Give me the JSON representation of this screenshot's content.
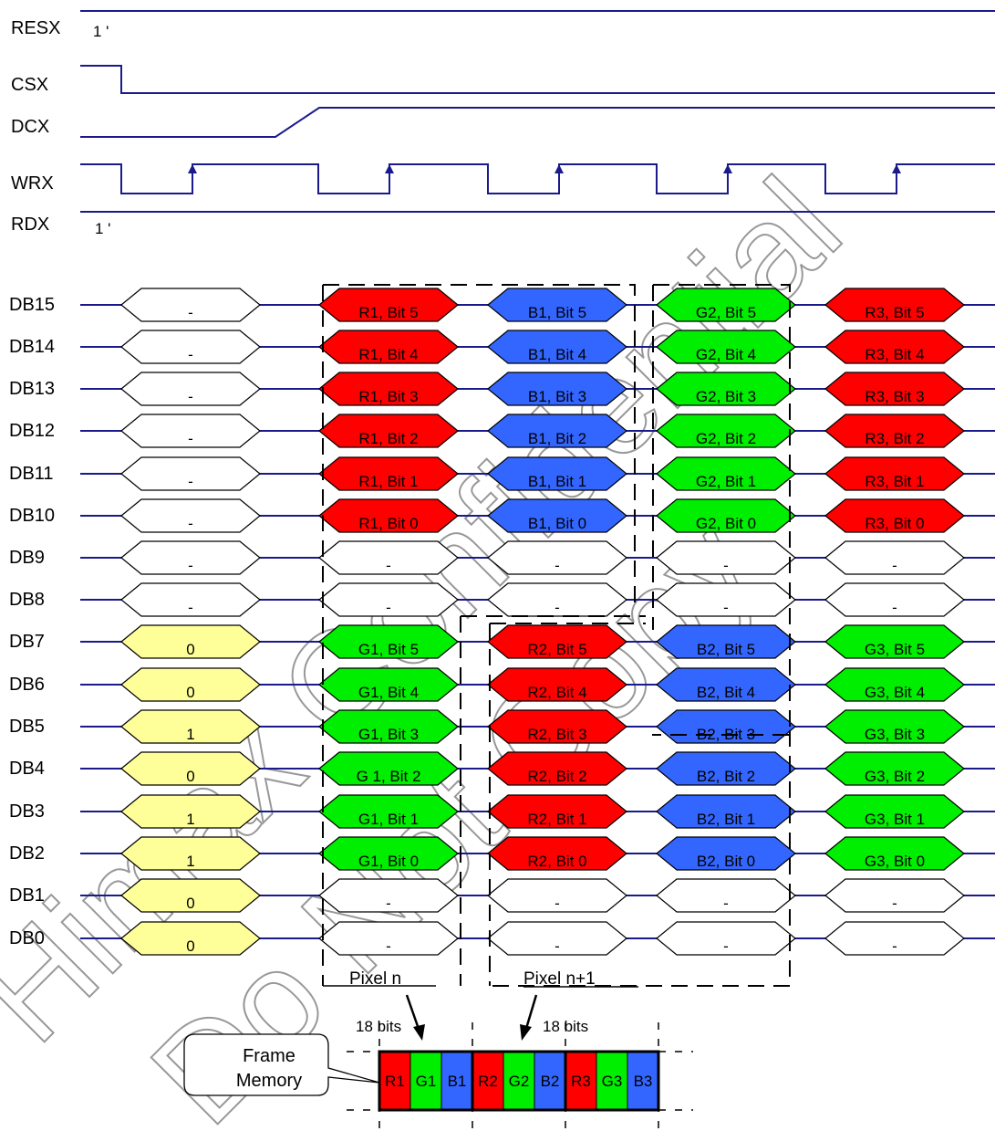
{
  "colors": {
    "signal": "#1a1a8c",
    "red": "#ff0000",
    "green": "#00ee00",
    "blue": "#3366ff",
    "yellow": "#ffff99",
    "white": "#ffffff"
  },
  "control_signals": [
    {
      "name": "RESX",
      "note": "1 '"
    },
    {
      "name": "CSX",
      "note": ""
    },
    {
      "name": "DCX",
      "note": ""
    },
    {
      "name": "WRX",
      "note": ""
    },
    {
      "name": "RDX",
      "note": "1 '"
    }
  ],
  "bus": [
    {
      "name": "DB15",
      "cells": [
        [
          "-",
          "white"
        ],
        [
          "R1, Bit 5",
          "red"
        ],
        [
          "B1, Bit 5",
          "blue"
        ],
        [
          "G2, Bit 5",
          "green"
        ],
        [
          "R3, Bit 5",
          "red"
        ]
      ]
    },
    {
      "name": "DB14",
      "cells": [
        [
          "-",
          "white"
        ],
        [
          "R1, Bit 4",
          "red"
        ],
        [
          "B1, Bit 4",
          "blue"
        ],
        [
          "G2, Bit 4",
          "green"
        ],
        [
          "R3, Bit 4",
          "red"
        ]
      ]
    },
    {
      "name": "DB13",
      "cells": [
        [
          "-",
          "white"
        ],
        [
          "R1, Bit 3",
          "red"
        ],
        [
          "B1, Bit 3",
          "blue"
        ],
        [
          "G2, Bit 3",
          "green"
        ],
        [
          "R3, Bit 3",
          "red"
        ]
      ]
    },
    {
      "name": "DB12",
      "cells": [
        [
          "-",
          "white"
        ],
        [
          "R1, Bit 2",
          "red"
        ],
        [
          "B1, Bit 2",
          "blue"
        ],
        [
          "G2, Bit 2",
          "green"
        ],
        [
          "R3, Bit 2",
          "red"
        ]
      ]
    },
    {
      "name": "DB11",
      "cells": [
        [
          "-",
          "white"
        ],
        [
          "R1, Bit 1",
          "red"
        ],
        [
          "B1, Bit 1",
          "blue"
        ],
        [
          "G2, Bit 1",
          "green"
        ],
        [
          "R3, Bit 1",
          "red"
        ]
      ]
    },
    {
      "name": "DB10",
      "cells": [
        [
          "-",
          "white"
        ],
        [
          "R1, Bit 0",
          "red"
        ],
        [
          "B1, Bit 0",
          "blue"
        ],
        [
          "G2, Bit 0",
          "green"
        ],
        [
          "R3, Bit 0",
          "red"
        ]
      ]
    },
    {
      "name": "DB9",
      "cells": [
        [
          "-",
          "white"
        ],
        [
          "-",
          "white"
        ],
        [
          "-",
          "white"
        ],
        [
          "-",
          "white"
        ],
        [
          "-",
          "white"
        ]
      ]
    },
    {
      "name": "DB8",
      "cells": [
        [
          "-",
          "white"
        ],
        [
          "-",
          "white"
        ],
        [
          "-",
          "white"
        ],
        [
          "-",
          "white"
        ],
        [
          "-",
          "white"
        ]
      ]
    },
    {
      "name": "DB7",
      "cells": [
        [
          "0",
          "yellow"
        ],
        [
          "G1, Bit 5",
          "green"
        ],
        [
          "R2, Bit 5",
          "red"
        ],
        [
          "B2, Bit 5",
          "blue"
        ],
        [
          "G3, Bit 5",
          "green"
        ]
      ]
    },
    {
      "name": "DB6",
      "cells": [
        [
          "0",
          "yellow"
        ],
        [
          "G1, Bit 4",
          "green"
        ],
        [
          "R2, Bit 4",
          "red"
        ],
        [
          "B2, Bit 4",
          "blue"
        ],
        [
          "G3, Bit 4",
          "green"
        ]
      ]
    },
    {
      "name": "DB5",
      "cells": [
        [
          "1",
          "yellow"
        ],
        [
          "G1, Bit 3",
          "green"
        ],
        [
          "R2, Bit 3",
          "red"
        ],
        [
          "B2, Bit 3",
          "blue"
        ],
        [
          "G3, Bit 3",
          "green"
        ]
      ]
    },
    {
      "name": "DB4",
      "cells": [
        [
          "0",
          "yellow"
        ],
        [
          "G 1, Bit 2",
          "green"
        ],
        [
          "R2, Bit 2",
          "red"
        ],
        [
          "B2, Bit 2",
          "blue"
        ],
        [
          "G3, Bit 2",
          "green"
        ]
      ]
    },
    {
      "name": "DB3",
      "cells": [
        [
          "1",
          "yellow"
        ],
        [
          "G1, Bit 1",
          "green"
        ],
        [
          "R2, Bit 1",
          "red"
        ],
        [
          "B2, Bit 1",
          "blue"
        ],
        [
          "G3, Bit 1",
          "green"
        ]
      ]
    },
    {
      "name": "DB2",
      "cells": [
        [
          "1",
          "yellow"
        ],
        [
          "G1, Bit 0",
          "green"
        ],
        [
          "R2, Bit 0",
          "red"
        ],
        [
          "B2, Bit 0",
          "blue"
        ],
        [
          "G3, Bit 0",
          "green"
        ]
      ]
    },
    {
      "name": "DB1",
      "cells": [
        [
          "0",
          "yellow"
        ],
        [
          "-",
          "white"
        ],
        [
          "-",
          "white"
        ],
        [
          "-",
          "white"
        ],
        [
          "-",
          "white"
        ]
      ]
    },
    {
      "name": "DB0",
      "cells": [
        [
          "0",
          "yellow"
        ],
        [
          "-",
          "white"
        ],
        [
          "-",
          "white"
        ],
        [
          "-",
          "white"
        ],
        [
          "-",
          "white"
        ]
      ]
    }
  ],
  "pixel_labels": {
    "pixel_n": "Pixel n",
    "pixel_n1": "Pixel n+1"
  },
  "bits_labels": {
    "left": "18 bits",
    "right": "18 bits"
  },
  "callout": {
    "line1": "Frame",
    "line2": "Memory"
  },
  "frame_memory": [
    [
      "R1",
      "red"
    ],
    [
      "G1",
      "green"
    ],
    [
      "B1",
      "blue"
    ],
    [
      "R2",
      "red"
    ],
    [
      "G2",
      "green"
    ],
    [
      "B2",
      "blue"
    ],
    [
      "R3",
      "red"
    ],
    [
      "G3",
      "green"
    ],
    [
      "B3",
      "blue"
    ]
  ],
  "watermark": {
    "line1": "Himax Confidential",
    "line2": "Do Not Copy"
  }
}
